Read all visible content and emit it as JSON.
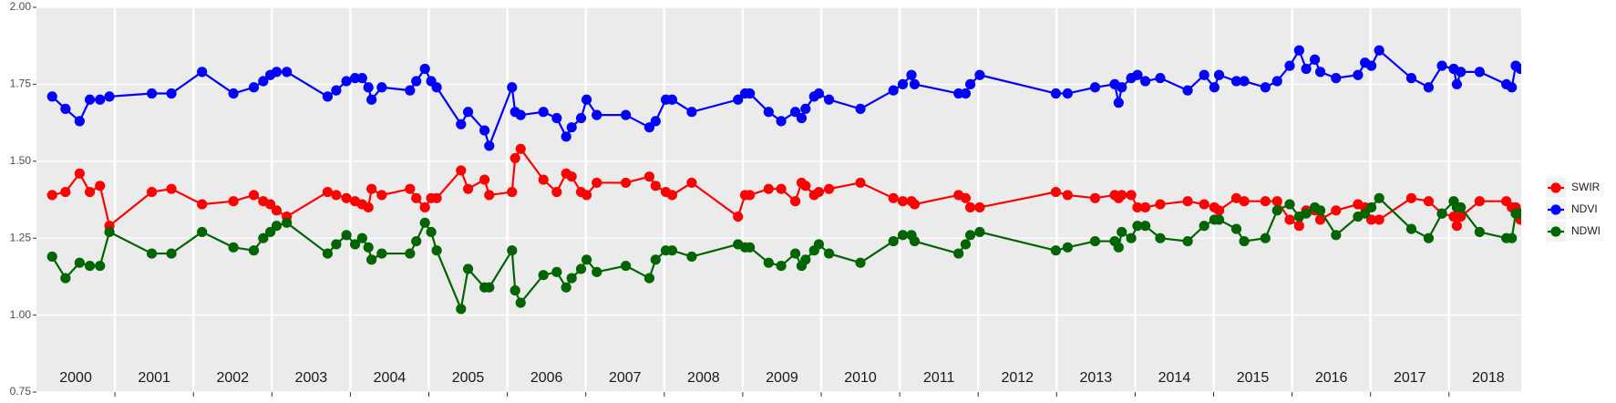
{
  "chart_data": {
    "type": "line",
    "x": [
      2000.2,
      2000.37,
      2000.55,
      2000.68,
      2000.81,
      2000.93,
      2001.47,
      2001.72,
      2002.11,
      2002.51,
      2002.77,
      2002.89,
      2002.98,
      2003.06,
      2003.19,
      2003.71,
      2003.82,
      2003.95,
      2004.06,
      2004.15,
      2004.23,
      2004.27,
      2004.4,
      2004.76,
      2004.84,
      2004.95,
      2005.03,
      2005.1,
      2005.41,
      2005.5,
      2005.71,
      2005.77,
      2006.06,
      2006.1,
      2006.17,
      2006.46,
      2006.63,
      2006.75,
      2006.82,
      2006.94,
      2007.01,
      2007.14,
      2007.51,
      2007.81,
      2007.89,
      2008.02,
      2008.1,
      2008.35,
      2008.94,
      2009.03,
      2009.09,
      2009.33,
      2009.49,
      2009.67,
      2009.75,
      2009.8,
      2009.91,
      2009.97,
      2010.1,
      2010.5,
      2010.92,
      2011.04,
      2011.15,
      2011.19,
      2011.75,
      2011.84,
      2011.9,
      2012.02,
      2012.99,
      2013.14,
      2013.49,
      2013.74,
      2013.79,
      2013.83,
      2013.95,
      2014.03,
      2014.13,
      2014.32,
      2014.67,
      2014.88,
      2015.01,
      2015.07,
      2015.29,
      2015.39,
      2015.66,
      2015.81,
      2015.97,
      2016.09,
      2016.18,
      2016.29,
      2016.36,
      2016.56,
      2016.84,
      2016.93,
      2017.01,
      2017.11,
      2017.52,
      2017.74,
      2017.91,
      2018.06,
      2018.1,
      2018.15,
      2018.39,
      2018.73,
      2018.8,
      2018.85,
      2018.91
    ],
    "series": [
      {
        "name": "SWIR",
        "color": "#ff0000",
        "values": [
          1.39,
          1.4,
          1.46,
          1.4,
          1.42,
          1.29,
          1.4,
          1.41,
          1.36,
          1.37,
          1.39,
          1.37,
          1.36,
          1.34,
          1.32,
          1.4,
          1.39,
          1.38,
          1.37,
          1.36,
          1.35,
          1.41,
          1.39,
          1.41,
          1.38,
          1.35,
          1.38,
          1.38,
          1.47,
          1.41,
          1.44,
          1.39,
          1.4,
          1.51,
          1.54,
          1.44,
          1.4,
          1.46,
          1.45,
          1.4,
          1.39,
          1.43,
          1.43,
          1.45,
          1.42,
          1.4,
          1.39,
          1.43,
          1.32,
          1.39,
          1.39,
          1.41,
          1.41,
          1.37,
          1.43,
          1.42,
          1.39,
          1.4,
          1.41,
          1.43,
          1.38,
          1.37,
          1.37,
          1.36,
          1.39,
          1.38,
          1.35,
          1.35,
          1.4,
          1.39,
          1.38,
          1.39,
          1.38,
          1.39,
          1.39,
          1.35,
          1.35,
          1.36,
          1.37,
          1.36,
          1.35,
          1.34,
          1.38,
          1.37,
          1.37,
          1.37,
          1.31,
          1.29,
          1.34,
          1.34,
          1.31,
          1.34,
          1.36,
          1.35,
          1.31,
          1.31,
          1.38,
          1.37,
          1.33,
          1.32,
          1.29,
          1.32,
          1.37,
          1.37,
          1.35,
          1.35,
          1.31
        ]
      },
      {
        "name": "NDVI",
        "color": "#0000ff",
        "values": [
          1.71,
          1.67,
          1.63,
          1.7,
          1.7,
          1.71,
          1.72,
          1.72,
          1.79,
          1.72,
          1.74,
          1.76,
          1.78,
          1.79,
          1.79,
          1.71,
          1.73,
          1.76,
          1.77,
          1.77,
          1.74,
          1.7,
          1.74,
          1.73,
          1.76,
          1.8,
          1.76,
          1.74,
          1.62,
          1.66,
          1.6,
          1.55,
          1.74,
          1.66,
          1.65,
          1.66,
          1.64,
          1.58,
          1.61,
          1.64,
          1.7,
          1.65,
          1.65,
          1.61,
          1.63,
          1.7,
          1.7,
          1.66,
          1.7,
          1.72,
          1.72,
          1.66,
          1.63,
          1.66,
          1.64,
          1.67,
          1.71,
          1.72,
          1.7,
          1.67,
          1.73,
          1.75,
          1.78,
          1.75,
          1.72,
          1.72,
          1.75,
          1.78,
          1.72,
          1.72,
          1.74,
          1.75,
          1.69,
          1.74,
          1.77,
          1.78,
          1.76,
          1.77,
          1.73,
          1.78,
          1.74,
          1.78,
          1.76,
          1.76,
          1.74,
          1.76,
          1.81,
          1.86,
          1.8,
          1.83,
          1.79,
          1.77,
          1.78,
          1.82,
          1.81,
          1.86,
          1.77,
          1.74,
          1.81,
          1.8,
          1.75,
          1.79,
          1.79,
          1.75,
          1.74,
          1.81,
          1.8
        ]
      },
      {
        "name": "NDWI",
        "color": "#006400",
        "values": [
          1.19,
          1.12,
          1.17,
          1.16,
          1.16,
          1.27,
          1.2,
          1.2,
          1.27,
          1.22,
          1.21,
          1.25,
          1.27,
          1.29,
          1.3,
          1.2,
          1.23,
          1.26,
          1.23,
          1.25,
          1.22,
          1.18,
          1.2,
          1.2,
          1.24,
          1.3,
          1.27,
          1.21,
          1.02,
          1.15,
          1.09,
          1.09,
          1.21,
          1.08,
          1.04,
          1.13,
          1.14,
          1.09,
          1.12,
          1.15,
          1.18,
          1.14,
          1.16,
          1.12,
          1.18,
          1.21,
          1.21,
          1.19,
          1.23,
          1.22,
          1.22,
          1.17,
          1.16,
          1.2,
          1.16,
          1.18,
          1.21,
          1.23,
          1.2,
          1.17,
          1.24,
          1.26,
          1.26,
          1.24,
          1.2,
          1.23,
          1.26,
          1.27,
          1.21,
          1.22,
          1.24,
          1.24,
          1.22,
          1.27,
          1.25,
          1.29,
          1.29,
          1.25,
          1.24,
          1.29,
          1.31,
          1.31,
          1.28,
          1.24,
          1.25,
          1.34,
          1.36,
          1.32,
          1.33,
          1.35,
          1.34,
          1.26,
          1.32,
          1.33,
          1.35,
          1.38,
          1.28,
          1.25,
          1.33,
          1.37,
          1.35,
          1.35,
          1.27,
          1.25,
          1.25,
          1.33,
          1.33
        ]
      }
    ],
    "xlim": [
      2000,
      2018.92
    ],
    "xticks": [
      2001,
      2002,
      2003,
      2004,
      2005,
      2006,
      2007,
      2008,
      2009,
      2010,
      2011,
      2012,
      2013,
      2014,
      2015,
      2016,
      2017,
      2018
    ],
    "year_labels": [
      2000,
      2001,
      2002,
      2003,
      2004,
      2005,
      2006,
      2007,
      2008,
      2009,
      2010,
      2011,
      2012,
      2013,
      2014,
      2015,
      2016,
      2017,
      2018
    ],
    "ylim": [
      0.75,
      2.0
    ],
    "yticks": [
      0.75,
      {
        "value": 1,
        "label": "1.00"
      },
      1.25,
      {
        "value": 1.5,
        "label": "1.50"
      },
      1.75,
      {
        "value": 2,
        "label": "2.00"
      }
    ],
    "grid": true,
    "legend": "right"
  }
}
